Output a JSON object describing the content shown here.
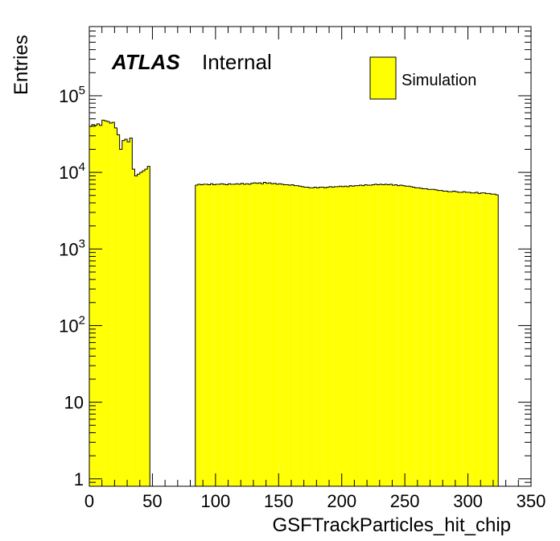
{
  "chart_data": {
    "type": "histogram",
    "title": "",
    "xlabel": "GSFTrackParticles_hit_chip",
    "ylabel": "Entries",
    "xlim": [
      0,
      350
    ],
    "ylim": [
      0.8,
      800000
    ],
    "log_y": true,
    "grid": false,
    "legend_position": "top-right",
    "fill_color": "#ffff00",
    "line_color": "#000000",
    "x_ticks": [
      "0",
      "50",
      "100",
      "150",
      "200",
      "250",
      "300",
      "350"
    ],
    "y_ticks": [
      {
        "base": "1",
        "exp": ""
      },
      {
        "base": "10",
        "exp": ""
      },
      {
        "base": "10",
        "exp": "2"
      },
      {
        "base": "10",
        "exp": "3"
      },
      {
        "base": "10",
        "exp": "4"
      },
      {
        "base": "10",
        "exp": "5"
      }
    ],
    "series": [
      {
        "name": "Simulation",
        "segments": [
          {
            "x_start": 0,
            "bin_width": 2,
            "values": [
              40000,
              42000,
              41000,
              43000,
              41000,
              48000,
              47000,
              46000,
              44000,
              45000,
              38000,
              31000,
              20000,
              26000,
              27000,
              25000,
              28000,
              11000,
              9000,
              9500,
              10000,
              10500,
              11000,
              12000
            ]
          },
          {
            "x_start": 84,
            "bin_width": 2,
            "values": [
              6800,
              7000,
              6900,
              7000,
              7000,
              6900,
              7100,
              6900,
              7000,
              7000,
              7100,
              7000,
              6900,
              7100,
              7000,
              7000,
              7100,
              7000,
              7200,
              7000,
              7100,
              7000,
              7200,
              7300,
              7200,
              7300,
              7100,
              7400,
              7200,
              7300,
              7100,
              7200,
              7000,
              7100,
              7000,
              6900,
              6900,
              6800,
              6900,
              6700,
              6700,
              6600,
              6500,
              6400,
              6400,
              6300,
              6300,
              6400,
              6300,
              6400,
              6400,
              6300,
              6400,
              6500,
              6400,
              6500,
              6500,
              6600,
              6500,
              6600,
              6500,
              6700,
              6600,
              6700,
              6700,
              6800,
              6700,
              6900,
              6800,
              6800,
              6900,
              7000,
              6900,
              7000,
              6900,
              7000,
              6900,
              7000,
              6800,
              6900,
              6700,
              6800,
              6700,
              6600,
              6600,
              6500,
              6400,
              6300,
              6300,
              6200,
              6100,
              6100,
              6000,
              6000,
              6000,
              5900,
              5800,
              5800,
              5700,
              5700,
              5600,
              5600,
              5700,
              5600,
              5500,
              5500,
              5600,
              5500,
              5500,
              5400,
              5400,
              5500,
              5300,
              5400,
              5400,
              5300,
              5300,
              5200,
              5200,
              5100
            ]
          }
        ]
      }
    ]
  },
  "label": {
    "experiment": "ATLAS",
    "status": "Internal"
  }
}
